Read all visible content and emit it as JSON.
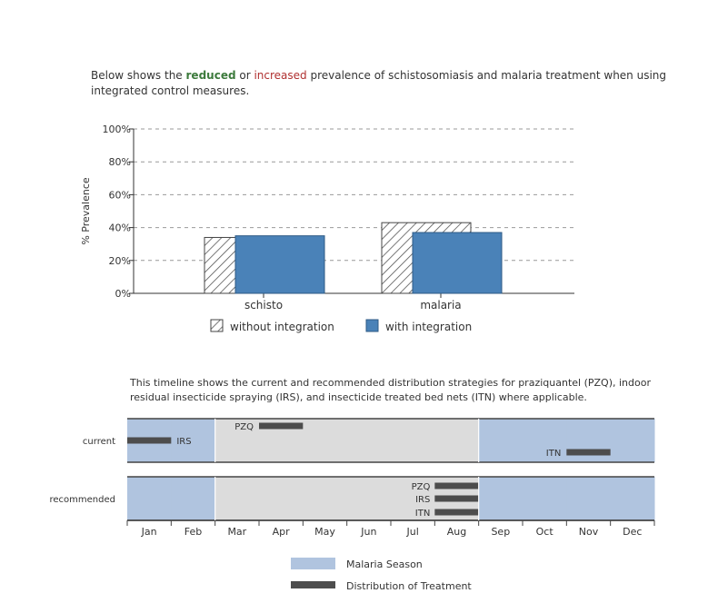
{
  "intro": {
    "prefix": "Below shows the ",
    "reduced": "reduced",
    "or": " or ",
    "increased": "increased",
    "suffix": " prevalence of schistosomiasis and malaria treatment when using integrated control measures."
  },
  "timeline_intro": "This timeline shows the current and recommended distribution strategies for praziquantel (PZQ), indoor residual insecticide spraying (IRS), and insecticide treated bed nets (ITN) where applicable.",
  "colors": {
    "with_integration": "#4a82b8",
    "malaria_season": "#b0c4df",
    "non_season": "#dcdcdc",
    "treatment": "#4d4d4d",
    "reduced": "#3c7a3c",
    "increased": "#b03030"
  },
  "chart_data": [
    {
      "type": "bar",
      "ylabel": "% Prevalence",
      "ylim": [
        0,
        100
      ],
      "yticks": [
        "0%",
        "20%",
        "40%",
        "60%",
        "80%",
        "100%"
      ],
      "grid": "dashed horizontal",
      "categories": [
        "schisto",
        "malaria"
      ],
      "series": [
        {
          "name": "without integration",
          "pattern": "hatched",
          "values": [
            34,
            43
          ]
        },
        {
          "name": "with integration",
          "values": [
            35,
            37
          ]
        }
      ],
      "legend": [
        "without integration",
        "with integration"
      ],
      "legend_position": "bottom"
    },
    {
      "type": "timeline",
      "months": [
        "Jan",
        "Feb",
        "Mar",
        "Apr",
        "May",
        "Jun",
        "Jul",
        "Aug",
        "Sep",
        "Oct",
        "Nov",
        "Dec"
      ],
      "rows": [
        "current",
        "recommended"
      ],
      "malaria_season_months": [
        "Jan",
        "Feb",
        "Sep",
        "Oct",
        "Nov",
        "Dec"
      ],
      "treatments": {
        "current": [
          {
            "label": "IRS",
            "start_month": 1,
            "end_month": 2
          },
          {
            "label": "PZQ",
            "start_month": 4,
            "end_month": 5
          },
          {
            "label": "ITN",
            "start_month": 11,
            "end_month": 12
          }
        ],
        "recommended": [
          {
            "label": "PZQ",
            "start_month": 8,
            "end_month": 9
          },
          {
            "label": "IRS",
            "start_month": 8,
            "end_month": 9
          },
          {
            "label": "ITN",
            "start_month": 8,
            "end_month": 9
          }
        ]
      },
      "legend": [
        "Malaria Season",
        "Distribution of Treatment"
      ]
    }
  ]
}
